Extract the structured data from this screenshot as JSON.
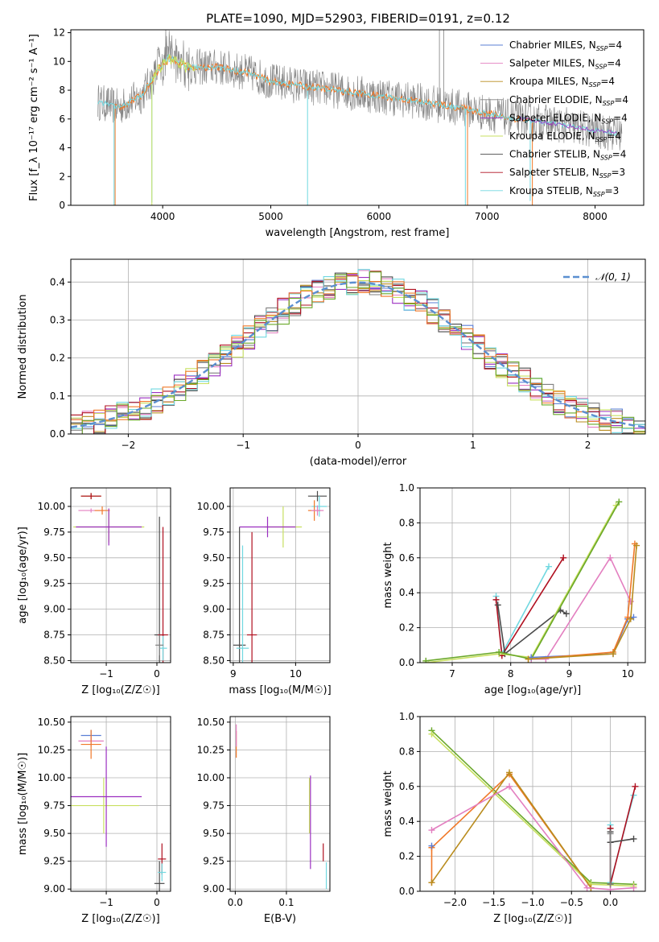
{
  "figure": {
    "title": "PLATE=1090, MJD=52903, FIBERID=0191, z=0.12",
    "colors": {
      "chabrier_miles": "#5b7fd6",
      "salpeter_miles": "#e37fc0",
      "kroupa_miles": "#b98c1e",
      "chabrier_elodie": "#808080",
      "salpeter_elodie": "#9b2fc0",
      "kroupa_elodie": "#c8e060",
      "chabrier_stelib": "#4a4a4a",
      "salpeter_stelib": "#b01020",
      "kroupa_stelib": "#70d8e0",
      "orange": "#f07828",
      "green": "#6aa82a",
      "normal": "#5b8fd0"
    }
  },
  "chart_data": [
    {
      "id": "spectrum",
      "type": "line",
      "xlabel": "wavelength [Angstrom, rest frame]",
      "ylabel": "Flux [f_λ 10⁻¹⁷ erg cm⁻² s⁻¹ A⁻¹]",
      "xlim": [
        3150,
        8450
      ],
      "ylim": [
        0,
        12.2
      ],
      "xticks": [
        "4000",
        "5000",
        "6000",
        "7000",
        "8000"
      ],
      "yticks": [
        "0",
        "2",
        "4",
        "6",
        "8",
        "10",
        "12"
      ],
      "legend": [
        "Chabrier MILES, N_SSP=4",
        "Salpeter MILES, N_SSP=4",
        "Kroupa MILES, N_SSP=4",
        "Chabrier ELODIE, N_SSP=4",
        "Salpeter ELODIE, N_SSP=4",
        "Kroupa ELODIE, N_SSP=4",
        "Chabrier STELIB, N_SSP=4",
        "Salpeter STELIB, N_SSP=3",
        "Kroupa STELIB, N_SSP=3"
      ],
      "legend_position": "top-right",
      "continuum": [
        [
          3400,
          7.2
        ],
        [
          3600,
          6.8
        ],
        [
          3800,
          7.6
        ],
        [
          3950,
          9.3
        ],
        [
          4050,
          10.2
        ],
        [
          4200,
          9.6
        ],
        [
          4500,
          9.6
        ],
        [
          4800,
          9.2
        ],
        [
          5000,
          8.6
        ],
        [
          5300,
          8.3
        ],
        [
          5600,
          8.0
        ],
        [
          6000,
          7.6
        ],
        [
          6400,
          7.2
        ],
        [
          6800,
          6.7
        ],
        [
          7200,
          6.1
        ],
        [
          7600,
          5.7
        ],
        [
          8000,
          5.2
        ],
        [
          8200,
          5.0
        ]
      ],
      "grid": false
    },
    {
      "id": "residuals",
      "type": "histogram",
      "xlabel": "(data-model)/error",
      "ylabel": "Normed distribution",
      "xlim": [
        -2.5,
        2.5
      ],
      "ylim": [
        0,
        0.46
      ],
      "xticks": [
        "−2",
        "−1",
        "0",
        "1",
        "2"
      ],
      "yticks": [
        "0.0",
        "0.1",
        "0.2",
        "0.3",
        "0.4"
      ],
      "bin_width": 0.1,
      "legend": [
        "𝒩(0, 1)"
      ],
      "legend_position": "top-right",
      "grid": true
    },
    {
      "id": "age_vs_Z",
      "type": "errorbar",
      "xlabel": "Z [log₁₀(Z/Z☉)]",
      "ylabel": "age  [log₁₀(age/yr)]",
      "xlim": [
        -1.7,
        0.27
      ],
      "ylim": [
        8.48,
        10.18
      ],
      "xticks": [
        "−1",
        "0"
      ],
      "yticks": [
        "8.50",
        "8.75",
        "9.00",
        "9.25",
        "9.50",
        "9.75",
        "10.00"
      ],
      "points": [
        {
          "c": "kroupa_miles",
          "x": -1.3,
          "y": 10.1,
          "xe": 0.2,
          "ye": 0.03
        },
        {
          "c": "salpeter_stelib",
          "x": -1.3,
          "y": 10.1,
          "xe": 0.2,
          "ye": 0.03
        },
        {
          "c": "salpeter_miles",
          "x": -1.3,
          "y": 9.96,
          "xe": 0.25,
          "ye": 0.02
        },
        {
          "c": "orange",
          "x": -1.08,
          "y": 9.96,
          "xe": 0.15,
          "ye": 0.04
        },
        {
          "c": "kroupa_elodie",
          "x": -0.95,
          "y": 9.8,
          "xe": 0.7,
          "ye": 0.15
        },
        {
          "c": "salpeter_elodie",
          "x": -0.95,
          "y": 9.8,
          "xe": 0.65,
          "ye": 0.18
        },
        {
          "c": "chabrier_stelib",
          "x": 0.05,
          "y": 8.75,
          "xe": 0.1,
          "ye": 1.15
        },
        {
          "c": "salpeter_stelib",
          "x": 0.12,
          "y": 8.75,
          "xe": 0.1,
          "ye": 1.05
        },
        {
          "c": "kroupa_stelib",
          "x": 0.12,
          "y": 8.62,
          "xe": 0.08,
          "ye": 0.12
        },
        {
          "c": "chabrier_elodie",
          "x": 0.05,
          "y": 8.65,
          "xe": 0.08,
          "ye": 0.1
        }
      ],
      "grid": true
    },
    {
      "id": "age_vs_mass",
      "type": "errorbar",
      "xlabel": "mass [log₁₀(M/M☉)]",
      "xlim": [
        8.95,
        10.55
      ],
      "ylim": [
        8.48,
        10.18
      ],
      "xticks": [
        "9",
        "10"
      ],
      "yticks": [
        "8.50",
        "8.75",
        "9.00",
        "9.25",
        "9.50",
        "9.75",
        "10.00"
      ],
      "points": [
        {
          "c": "chabrier_stelib",
          "x": 10.35,
          "y": 10.1,
          "xe": 0.15,
          "ye": 0.05
        },
        {
          "c": "kroupa_stelib",
          "x": 10.38,
          "y": 10.0,
          "xe": 0.12,
          "ye": 0.1
        },
        {
          "c": "orange",
          "x": 10.3,
          "y": 9.96,
          "xe": 0.1,
          "ye": 0.1
        },
        {
          "c": "salpeter_miles",
          "x": 10.35,
          "y": 9.96,
          "xe": 0.1,
          "ye": 0.05
        },
        {
          "c": "kroupa_elodie",
          "x": 9.8,
          "y": 9.8,
          "xe": 0.3,
          "ye": 0.2
        },
        {
          "c": "salpeter_elodie",
          "x": 9.55,
          "y": 9.8,
          "xe": 0.45,
          "ye": 0.1
        },
        {
          "c": "chabrier_stelib",
          "x": 9.1,
          "y": 8.65,
          "xe": 0.1,
          "ye": 1.15
        },
        {
          "c": "salpeter_stelib",
          "x": 9.3,
          "y": 8.75,
          "xe": 0.08,
          "ye": 1.0
        },
        {
          "c": "kroupa_stelib",
          "x": 9.15,
          "y": 8.62,
          "xe": 0.1,
          "ye": 1.0
        }
      ],
      "grid": true
    },
    {
      "id": "weight_vs_age",
      "type": "line",
      "xlabel": "age  [log₁₀(age/yr)]",
      "ylabel": "mass weight",
      "xlim": [
        6.45,
        10.3
      ],
      "ylim": [
        0,
        1.0
      ],
      "xticks": [
        "7",
        "8",
        "9",
        "10"
      ],
      "yticks": [
        "0.0",
        "0.2",
        "0.4",
        "0.6",
        "0.8",
        "1.0"
      ],
      "series": [
        {
          "c": "kroupa_stelib",
          "pts": [
            [
              7.75,
              0.38
            ],
            [
              7.85,
              0.05
            ],
            [
              8.65,
              0.55
            ]
          ]
        },
        {
          "c": "salpeter_stelib",
          "pts": [
            [
              7.75,
              0.36
            ],
            [
              7.85,
              0.04
            ],
            [
              8.9,
              0.6
            ]
          ]
        },
        {
          "c": "chabrier_stelib",
          "pts": [
            [
              7.78,
              0.33
            ],
            [
              7.9,
              0.05
            ],
            [
              8.85,
              0.3
            ],
            [
              8.95,
              0.28
            ]
          ]
        },
        {
          "c": "kroupa_elodie",
          "pts": [
            [
              6.55,
              0.0
            ],
            [
              7.8,
              0.05
            ],
            [
              8.35,
              0.03
            ],
            [
              9.8,
              0.9
            ]
          ]
        },
        {
          "c": "green",
          "pts": [
            [
              6.55,
              0.01
            ],
            [
              7.8,
              0.06
            ],
            [
              8.35,
              0.02
            ],
            [
              9.85,
              0.92
            ]
          ]
        },
        {
          "c": "salpeter_miles",
          "pts": [
            [
              8.35,
              0.02
            ],
            [
              8.6,
              0.02
            ],
            [
              9.7,
              0.6
            ],
            [
              10.05,
              0.35
            ]
          ]
        },
        {
          "c": "chabrier_miles",
          "pts": [
            [
              8.35,
              0.03
            ],
            [
              9.75,
              0.05
            ],
            [
              10.0,
              0.25
            ],
            [
              10.1,
              0.26
            ]
          ]
        },
        {
          "c": "orange",
          "pts": [
            [
              8.3,
              0.02
            ],
            [
              9.75,
              0.06
            ],
            [
              10.0,
              0.26
            ],
            [
              10.12,
              0.68
            ]
          ]
        },
        {
          "c": "kroupa_miles",
          "pts": [
            [
              8.3,
              0.02
            ],
            [
              9.75,
              0.05
            ],
            [
              10.05,
              0.25
            ],
            [
              10.15,
              0.67
            ]
          ]
        }
      ],
      "grid": true
    },
    {
      "id": "mass_vs_Z",
      "type": "errorbar",
      "xlabel": "Z [log₁₀(Z/Z☉)]",
      "ylabel": "mass [log₁₀(M/M☉)]",
      "xlim": [
        -1.7,
        0.27
      ],
      "ylim": [
        8.98,
        10.55
      ],
      "xticks": [
        "−1",
        "0"
      ],
      "yticks": [
        "9.00",
        "9.25",
        "9.50",
        "9.75",
        "10.00",
        "10.25",
        "10.50"
      ],
      "points": [
        {
          "c": "chabrier_miles",
          "x": -1.3,
          "y": 10.38,
          "xe": 0.2,
          "ye": 0.05
        },
        {
          "c": "salpeter_miles",
          "x": -1.3,
          "y": 10.33,
          "xe": 0.25,
          "ye": 0.05
        },
        {
          "c": "orange",
          "x": -1.3,
          "y": 10.3,
          "xe": 0.2,
          "ye": 0.13
        },
        {
          "c": "kroupa_elodie",
          "x": -1.05,
          "y": 9.75,
          "xe": 0.7,
          "ye": 0.25
        },
        {
          "c": "salpeter_elodie",
          "x": -1.0,
          "y": 9.83,
          "xe": 0.7,
          "ye": 0.45
        },
        {
          "c": "salpeter_stelib",
          "x": 0.1,
          "y": 9.27,
          "xe": 0.08,
          "ye": 0.14
        },
        {
          "c": "chabrier_stelib",
          "x": 0.05,
          "y": 9.05,
          "xe": 0.1,
          "ye": 0.2
        },
        {
          "c": "kroupa_stelib",
          "x": 0.1,
          "y": 9.15,
          "xe": 0.08,
          "ye": 0.08
        }
      ],
      "grid": true
    },
    {
      "id": "mass_vs_EBV",
      "type": "errorbar",
      "xlabel": "E(B-V)",
      "xlim": [
        -0.01,
        0.185
      ],
      "ylim": [
        8.98,
        10.55
      ],
      "xticks": [
        "0.0",
        "0.1"
      ],
      "yticks": [
        "9.00",
        "9.25",
        "9.50",
        "9.75",
        "10.00",
        "10.25",
        "10.50"
      ],
      "points": [
        {
          "c": "orange",
          "x": 0.002,
          "y": 10.3,
          "xe": 0.0,
          "ye": 0.12
        },
        {
          "c": "salpeter_miles",
          "x": 0.002,
          "y": 10.38,
          "xe": 0.0,
          "ye": 0.1
        },
        {
          "c": "kroupa_elodie",
          "x": 0.145,
          "y": 9.75,
          "xe": 0.0,
          "ye": 0.25
        },
        {
          "c": "salpeter_elodie",
          "x": 0.147,
          "y": 9.6,
          "xe": 0.0,
          "ye": 0.42
        },
        {
          "c": "salpeter_stelib",
          "x": 0.172,
          "y": 9.33,
          "xe": 0.0,
          "ye": 0.08
        },
        {
          "c": "kroupa_stelib",
          "x": 0.178,
          "y": 9.12,
          "xe": 0.0,
          "ye": 0.12
        }
      ],
      "grid": true
    },
    {
      "id": "weight_vs_Z",
      "type": "line",
      "xlabel": "Z [log₁₀(Z/Z☉)]",
      "ylabel": "mass weight",
      "xlim": [
        -2.45,
        0.45
      ],
      "ylim": [
        0,
        1.0
      ],
      "xticks": [
        "−2.0",
        "−1.5",
        "−1.0",
        "−0.5",
        "0.0"
      ],
      "yticks": [
        "0.0",
        "0.2",
        "0.4",
        "0.6",
        "0.8",
        "1.0"
      ],
      "series": [
        {
          "c": "green",
          "pts": [
            [
              -2.3,
              0.92
            ],
            [
              -0.25,
              0.05
            ],
            [
              0.3,
              0.04
            ]
          ]
        },
        {
          "c": "kroupa_elodie",
          "pts": [
            [
              -2.3,
              0.9
            ],
            [
              -0.25,
              0.04
            ],
            [
              0.3,
              0.03
            ]
          ]
        },
        {
          "c": "orange",
          "pts": [
            [
              -2.3,
              0.05
            ],
            [
              -2.3,
              0.25
            ],
            [
              -1.3,
              0.67
            ],
            [
              -0.25,
              0.02
            ]
          ]
        },
        {
          "c": "kroupa_miles",
          "pts": [
            [
              -2.3,
              0.05
            ],
            [
              -1.3,
              0.68
            ],
            [
              -0.25,
              0.02
            ]
          ]
        },
        {
          "c": "salpeter_miles",
          "pts": [
            [
              -2.3,
              0.35
            ],
            [
              -1.3,
              0.6
            ],
            [
              -0.3,
              0.02
            ],
            [
              0.0,
              0.01
            ],
            [
              0.3,
              0.02
            ]
          ]
        },
        {
          "c": "chabrier_miles",
          "pts": [
            [
              -2.3,
              0.26
            ]
          ]
        },
        {
          "c": "kroupa_stelib",
          "pts": [
            [
              0.0,
              0.38
            ],
            [
              0.0,
              0.05
            ],
            [
              0.3,
              0.55
            ]
          ]
        },
        {
          "c": "salpeter_stelib",
          "pts": [
            [
              0.0,
              0.36
            ],
            [
              0.0,
              0.04
            ],
            [
              0.32,
              0.6
            ]
          ]
        },
        {
          "c": "chabrier_stelib",
          "pts": [
            [
              0.0,
              0.34
            ],
            [
              0.0,
              0.28
            ],
            [
              0.3,
              0.3
            ]
          ]
        },
        {
          "c": "chabrier_elodie",
          "pts": [
            [
              0.0,
              0.04
            ],
            [
              0.0,
              0.33
            ]
          ]
        }
      ],
      "grid": true
    }
  ]
}
